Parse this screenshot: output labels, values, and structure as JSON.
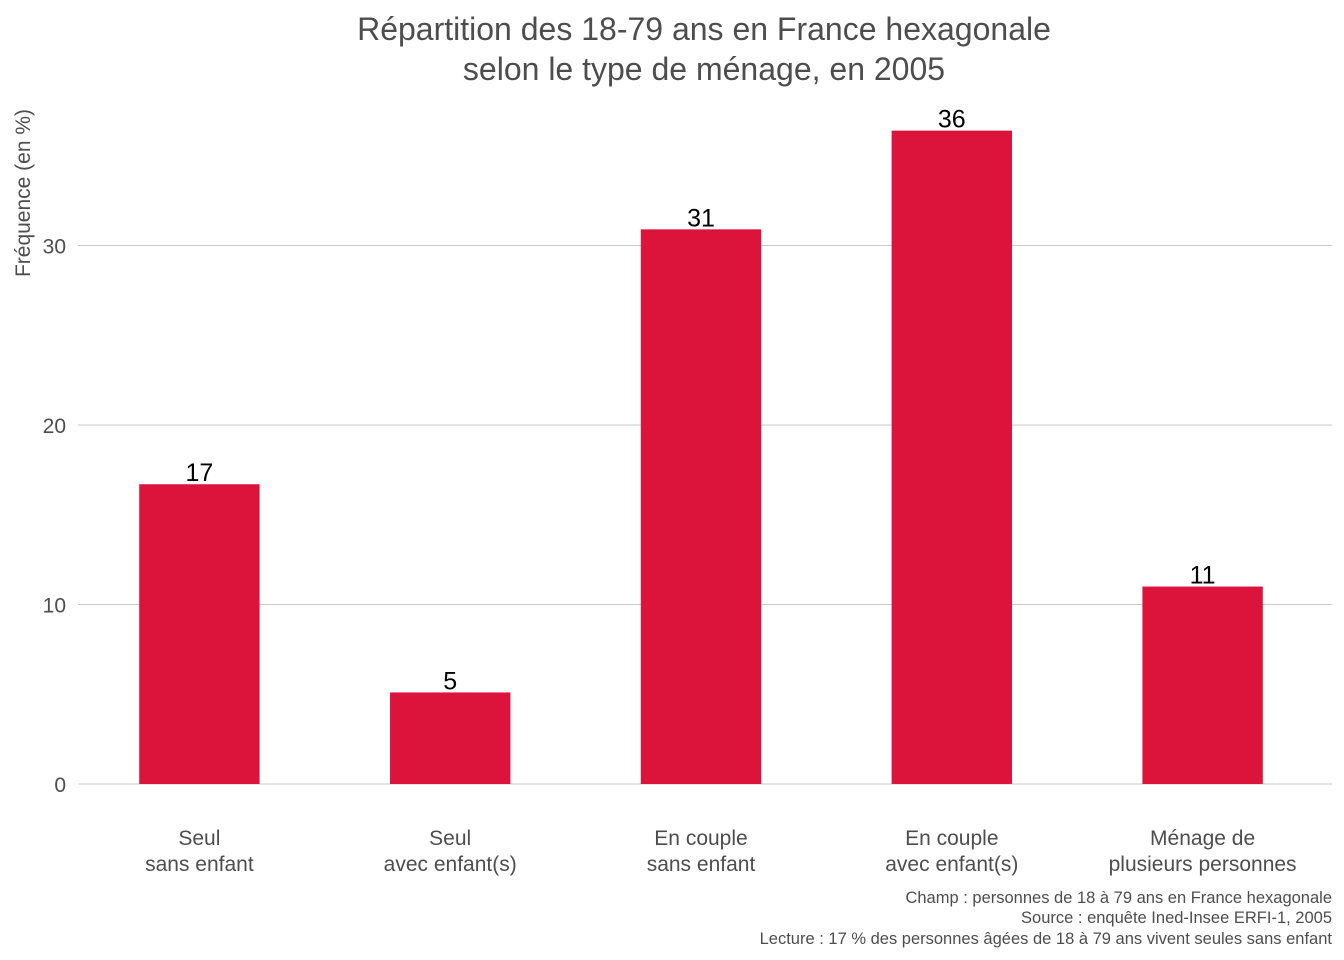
{
  "chart_data": {
    "type": "bar",
    "title": [
      "Répartition des 18-79 ans en France hexagonale",
      "selon le type de ménage, en 2005"
    ],
    "xlabel": "",
    "ylabel": "Fréquence (en %)",
    "ylim": [
      0,
      37.5
    ],
    "yticks": [
      0,
      10,
      20,
      30
    ],
    "grid": true,
    "legend": "none",
    "categories": [
      [
        "Seul",
        "sans enfant"
      ],
      [
        "Seul",
        "avec enfant(s)"
      ],
      [
        "En couple",
        "sans enfant"
      ],
      [
        "En couple",
        "avec enfant(s)"
      ],
      [
        "Ménage de",
        "plusieurs personnes"
      ]
    ],
    "values": [
      16.7,
      5.1,
      30.9,
      36.4,
      11.0
    ],
    "data_labels": [
      "17",
      "5",
      "31",
      "36",
      "11"
    ],
    "bar_color": "#DC143C",
    "caption": [
      "Champ : personnes de 18 à 79 ans en France hexagonale",
      "Source : enquête Ined-Insee ERFI-1, 2005",
      "Lecture : 17 % des personnes âgées de 18 à 79 ans vivent seules sans enfant"
    ]
  }
}
